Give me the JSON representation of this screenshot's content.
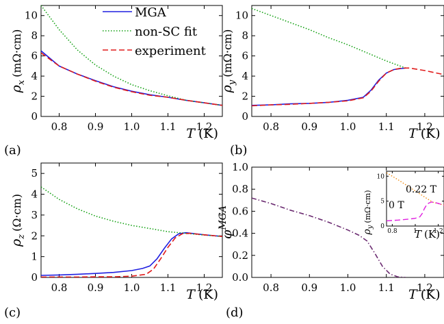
{
  "colors": {
    "blue": "#1f1fe0",
    "green": "#12a012",
    "red": "#e01a1a",
    "purple": "#6a2a70",
    "magenta": "#e020e0",
    "orange": "#f08a10"
  },
  "chart_data": [
    {
      "type": "line",
      "panel_label": "(a)",
      "ylabel_sym": "ρ",
      "ylabel_sub": "x",
      "ylabel_unit": "(mΩ·cm)",
      "xlabel_sym": "T",
      "xlabel_unit": "(K)",
      "xlim": [
        0.75,
        1.25
      ],
      "ylim": [
        0,
        11
      ],
      "xticks": [
        0.8,
        0.9,
        1.0,
        1.1,
        1.2
      ],
      "xtick_labels": [
        "0.8",
        "0.9",
        "1.0",
        "1.1",
        "1.2"
      ],
      "yticks": [
        0,
        2,
        4,
        6,
        8,
        10
      ],
      "ytick_labels": [
        "0",
        "2",
        "4",
        "6",
        "8",
        "10"
      ],
      "legend": {
        "position": "top-right",
        "entries": [
          "MGA",
          "non-SC fit",
          "experiment"
        ]
      },
      "series": [
        {
          "name": "MGA",
          "color": "#1f1fe0",
          "dash": "solid",
          "x": [
            0.75,
            0.8,
            0.85,
            0.9,
            0.95,
            1.0,
            1.05,
            1.1,
            1.15,
            1.2,
            1.25
          ],
          "y": [
            6.5,
            5.0,
            4.2,
            3.55,
            2.95,
            2.5,
            2.15,
            1.9,
            1.6,
            1.35,
            1.1
          ]
        },
        {
          "name": "non-SC fit",
          "color": "#12a012",
          "dash": "dotted",
          "x": [
            0.75,
            0.8,
            0.85,
            0.9,
            0.95,
            1.0,
            1.05,
            1.1,
            1.15,
            1.2,
            1.25
          ],
          "y": [
            11.0,
            8.6,
            6.6,
            5.1,
            4.0,
            3.15,
            2.55,
            2.05,
            1.6,
            1.35,
            1.1
          ]
        },
        {
          "name": "experiment",
          "color": "#e01a1a",
          "dash": "dashed",
          "x": [
            0.75,
            0.8,
            0.85,
            0.9,
            0.95,
            1.0,
            1.05,
            1.1,
            1.15,
            1.2,
            1.25
          ],
          "y": [
            6.3,
            5.0,
            4.2,
            3.5,
            2.9,
            2.45,
            2.1,
            1.9,
            1.6,
            1.35,
            1.1
          ]
        }
      ]
    },
    {
      "type": "line",
      "panel_label": "(b)",
      "ylabel_sym": "ρ",
      "ylabel_sub": "y",
      "ylabel_unit": "(mΩ·cm)",
      "xlabel_sym": "T",
      "xlabel_unit": "(K)",
      "xlim": [
        0.75,
        1.25
      ],
      "ylim": [
        0,
        11
      ],
      "xticks": [
        0.8,
        0.9,
        1.0,
        1.1,
        1.2
      ],
      "xtick_labels": [
        "0.8",
        "0.9",
        "1.0",
        "1.1",
        "1.2"
      ],
      "yticks": [
        0,
        2,
        4,
        6,
        8,
        10
      ],
      "ytick_labels": [
        "0",
        "2",
        "4",
        "6",
        "8",
        "10"
      ],
      "series": [
        {
          "name": "MGA",
          "color": "#1f1fe0",
          "dash": "solid",
          "x": [
            0.75,
            0.8,
            0.85,
            0.9,
            0.95,
            1.0,
            1.04,
            1.06,
            1.08,
            1.1,
            1.12,
            1.14,
            1.15
          ],
          "y": [
            1.1,
            1.15,
            1.25,
            1.3,
            1.4,
            1.6,
            1.9,
            2.6,
            3.6,
            4.3,
            4.65,
            4.75,
            4.8
          ]
        },
        {
          "name": "non-SC fit",
          "color": "#12a012",
          "dash": "dotted",
          "x": [
            0.75,
            0.8,
            0.85,
            0.9,
            0.95,
            1.0,
            1.05,
            1.1,
            1.15
          ],
          "y": [
            10.7,
            10.0,
            9.3,
            8.6,
            7.8,
            7.1,
            6.3,
            5.5,
            4.8
          ]
        },
        {
          "name": "experiment",
          "color": "#e01a1a",
          "dash": "dashed",
          "x": [
            0.75,
            0.8,
            0.85,
            0.9,
            0.95,
            1.0,
            1.04,
            1.06,
            1.08,
            1.1,
            1.12,
            1.14,
            1.16,
            1.2,
            1.25
          ],
          "y": [
            1.05,
            1.15,
            1.2,
            1.3,
            1.4,
            1.55,
            1.85,
            2.5,
            3.5,
            4.3,
            4.65,
            4.8,
            4.8,
            4.55,
            4.15
          ]
        }
      ]
    },
    {
      "type": "line",
      "panel_label": "(c)",
      "ylabel_sym": "ρ",
      "ylabel_sub": "z",
      "ylabel_unit": "(Ω·cm)",
      "xlabel_sym": "T",
      "xlabel_unit": "(K)",
      "xlim": [
        0.75,
        1.25
      ],
      "ylim": [
        0,
        5.5
      ],
      "xticks": [
        0.8,
        0.9,
        1.0,
        1.1,
        1.2
      ],
      "xtick_labels": [
        "0.8",
        "0.9",
        "1.0",
        "1.1",
        "1.2"
      ],
      "yticks": [
        0,
        1,
        2,
        3,
        4,
        5
      ],
      "ytick_labels": [
        "0",
        "1",
        "2",
        "3",
        "4",
        "5"
      ],
      "series": [
        {
          "name": "MGA",
          "color": "#1f1fe0",
          "dash": "solid",
          "x": [
            0.75,
            0.8,
            0.85,
            0.9,
            0.95,
            1.0,
            1.03,
            1.05,
            1.07,
            1.09,
            1.11,
            1.13,
            1.15,
            1.2,
            1.25
          ],
          "y": [
            0.1,
            0.12,
            0.15,
            0.19,
            0.24,
            0.33,
            0.43,
            0.55,
            0.9,
            1.4,
            1.85,
            2.1,
            2.15,
            2.05,
            1.97
          ]
        },
        {
          "name": "non-SC fit",
          "color": "#12a012",
          "dash": "dotted",
          "x": [
            0.75,
            0.8,
            0.85,
            0.9,
            0.95,
            1.0,
            1.05,
            1.1,
            1.15,
            1.2,
            1.25
          ],
          "y": [
            4.35,
            3.75,
            3.3,
            2.95,
            2.7,
            2.5,
            2.35,
            2.2,
            2.12,
            2.04,
            1.97
          ]
        },
        {
          "name": "experiment",
          "color": "#e01a1a",
          "dash": "dashed",
          "x": [
            0.75,
            0.8,
            0.85,
            0.9,
            0.95,
            1.0,
            1.04,
            1.06,
            1.08,
            1.1,
            1.12,
            1.14,
            1.16,
            1.2,
            1.25
          ],
          "y": [
            0.02,
            0.02,
            0.02,
            0.03,
            0.03,
            0.06,
            0.15,
            0.4,
            0.9,
            1.45,
            1.9,
            2.1,
            2.12,
            2.05,
            1.97
          ]
        }
      ]
    },
    {
      "type": "line",
      "panel_label": "(d)",
      "ylabel_sym": "φ",
      "ylabel_sup": "MGA",
      "xlabel_sym": "T",
      "xlabel_unit": "(K)",
      "xlim": [
        0.75,
        1.25
      ],
      "ylim": [
        0,
        1.0
      ],
      "xticks": [
        0.8,
        0.9,
        1.0,
        1.1,
        1.2
      ],
      "xtick_labels": [
        "0.8",
        "0.9",
        "1.0",
        "1.1",
        "1.2"
      ],
      "yticks": [
        0,
        0.2,
        0.4,
        0.6,
        0.8,
        1.0
      ],
      "ytick_labels": [
        "0.0",
        "0.2",
        "0.4",
        "0.6",
        "0.8",
        "1.0"
      ],
      "series": [
        {
          "color": "#6a2a70",
          "dash": "dashdot",
          "x": [
            0.75,
            0.8,
            0.85,
            0.9,
            0.95,
            1.0,
            1.03,
            1.05,
            1.07,
            1.09,
            1.11,
            1.13,
            1.15
          ],
          "y": [
            0.72,
            0.67,
            0.61,
            0.56,
            0.5,
            0.43,
            0.38,
            0.33,
            0.22,
            0.1,
            0.03,
            0.005,
            0.0
          ]
        }
      ],
      "inset": {
        "ylabel_sym": "ρ",
        "ylabel_sub": "y",
        "ylabel_unit": "(mΩ·cm)",
        "xlabel_sym": "T",
        "xlabel_unit": "(K)",
        "xlim": [
          0.75,
          1.25
        ],
        "ylim": [
          0,
          11
        ],
        "xticks": [
          0.8,
          1.0,
          1.2
        ],
        "xtick_labels": [
          "0.8",
          "1",
          "1.2"
        ],
        "yticks": [
          0,
          5,
          10
        ],
        "ytick_labels": [
          "0",
          "5",
          "10"
        ],
        "series": [
          {
            "name": "0.22 T",
            "color": "#f08a10",
            "dash": "dotted",
            "x": [
              0.75,
              0.85,
              0.95,
              1.05,
              1.15,
              1.25
            ],
            "y": [
              10.7,
              9.3,
              7.8,
              6.3,
              4.8,
              4.2
            ]
          },
          {
            "name": "0 T",
            "color": "#e020e0",
            "dash": "dashed",
            "x": [
              0.75,
              0.85,
              0.95,
              1.0,
              1.04,
              1.06,
              1.08,
              1.1,
              1.12,
              1.14,
              1.16,
              1.2,
              1.25
            ],
            "y": [
              1.05,
              1.2,
              1.4,
              1.55,
              1.85,
              2.5,
              3.5,
              4.3,
              4.65,
              4.8,
              4.8,
              4.55,
              4.15
            ]
          }
        ]
      }
    }
  ]
}
